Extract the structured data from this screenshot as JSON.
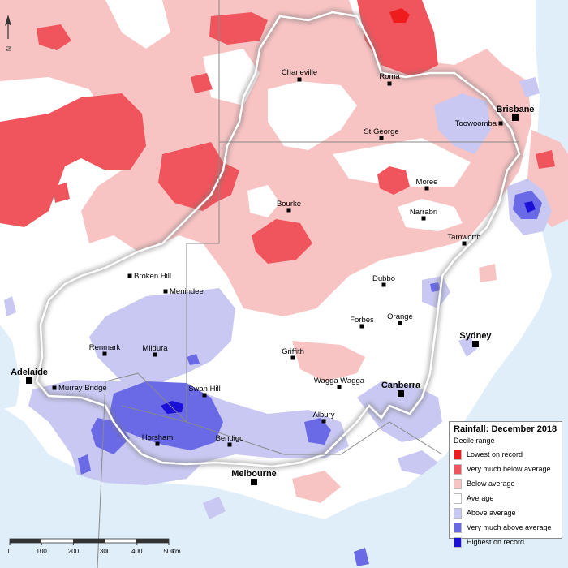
{
  "legend": {
    "title": "Rainfall: December 2018",
    "subtitle": "Decile range",
    "items": [
      {
        "label": "Lowest on record",
        "color": "#ee1c1c"
      },
      {
        "label": "Very much below average",
        "color": "#f0545c"
      },
      {
        "label": "Below average",
        "color": "#f8c3c3"
      },
      {
        "label": "Average",
        "color": "#ffffff"
      },
      {
        "label": "Above average",
        "color": "#c8c8f2"
      },
      {
        "label": "Very much above average",
        "color": "#6a6ae6"
      },
      {
        "label": "Highest on record",
        "color": "#1a10d8"
      }
    ]
  },
  "north_arrow": {
    "label": "N"
  },
  "scale": {
    "ticks": [
      "0",
      "100",
      "200",
      "300",
      "400",
      "500"
    ],
    "unit": "km"
  },
  "cities": [
    {
      "name": "Charleville",
      "major": false
    },
    {
      "name": "Roma",
      "major": false
    },
    {
      "name": "Brisbane",
      "major": true
    },
    {
      "name": "Toowoomba",
      "major": false
    },
    {
      "name": "St George",
      "major": false
    },
    {
      "name": "Moree",
      "major": false
    },
    {
      "name": "Bourke",
      "major": false
    },
    {
      "name": "Narrabri",
      "major": false
    },
    {
      "name": "Tamworth",
      "major": false
    },
    {
      "name": "Broken Hill",
      "major": false
    },
    {
      "name": "Menindee",
      "major": false
    },
    {
      "name": "Dubbo",
      "major": false
    },
    {
      "name": "Forbes",
      "major": false
    },
    {
      "name": "Orange",
      "major": false
    },
    {
      "name": "Sydney",
      "major": true
    },
    {
      "name": "Renmark",
      "major": false
    },
    {
      "name": "Mildura",
      "major": false
    },
    {
      "name": "Griffith",
      "major": false
    },
    {
      "name": "Adelaide",
      "major": true
    },
    {
      "name": "Murray Bridge",
      "major": false
    },
    {
      "name": "Swan Hill",
      "major": false
    },
    {
      "name": "Wagga Wagga",
      "major": false
    },
    {
      "name": "Canberra",
      "major": true
    },
    {
      "name": "Albury",
      "major": false
    },
    {
      "name": "Horsham",
      "major": false
    },
    {
      "name": "Bendigo",
      "major": false
    },
    {
      "name": "Melbourne",
      "major": true
    }
  ]
}
